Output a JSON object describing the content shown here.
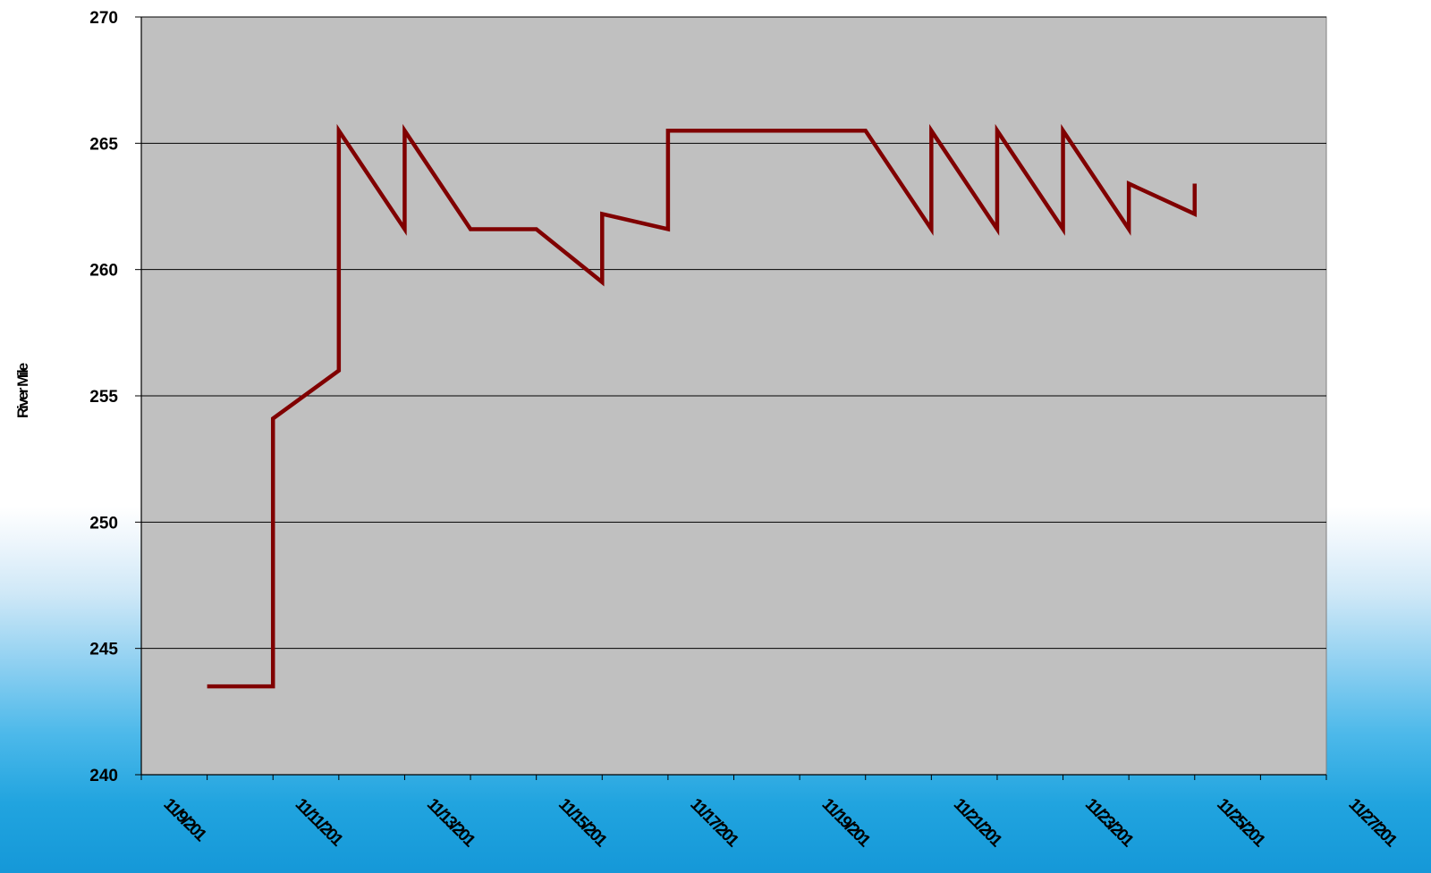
{
  "chart_data": {
    "type": "line",
    "title": "",
    "xlabel": "",
    "ylabel": "River Mile",
    "ylim": [
      240,
      270
    ],
    "y_ticks": [
      "240",
      "245",
      "250",
      "255",
      "260",
      "265",
      "270"
    ],
    "x_ticks": [
      "11/9/201",
      "11/11/201",
      "11/13/201",
      "11/15/201",
      "11/17/201",
      "11/19/201",
      "11/21/201",
      "11/23/201",
      "11/25/201",
      "11/27/201"
    ],
    "xlim": [
      "11/9",
      "11/27"
    ],
    "grid": true,
    "plot_background": "#C0C0C0",
    "series": [
      {
        "color": "#800000",
        "x": [
          "11/10",
          "11/11",
          "11/11",
          "11/12",
          "11/12",
          "11/13",
          "11/13",
          "11/14",
          "11/15",
          "11/16",
          "11/16",
          "11/17",
          "11/17",
          "11/20",
          "11/21",
          "11/21",
          "11/22",
          "11/22",
          "11/23",
          "11/23",
          "11/24",
          "11/24",
          "11/25",
          "11/25"
        ],
        "y": [
          243.5,
          243.5,
          254.1,
          256.0,
          265.5,
          261.6,
          265.5,
          261.6,
          261.6,
          259.5,
          262.2,
          261.6,
          265.5,
          265.5,
          261.6,
          265.5,
          261.6,
          265.5,
          261.6,
          265.5,
          261.6,
          263.4,
          262.2,
          263.4
        ]
      }
    ]
  }
}
